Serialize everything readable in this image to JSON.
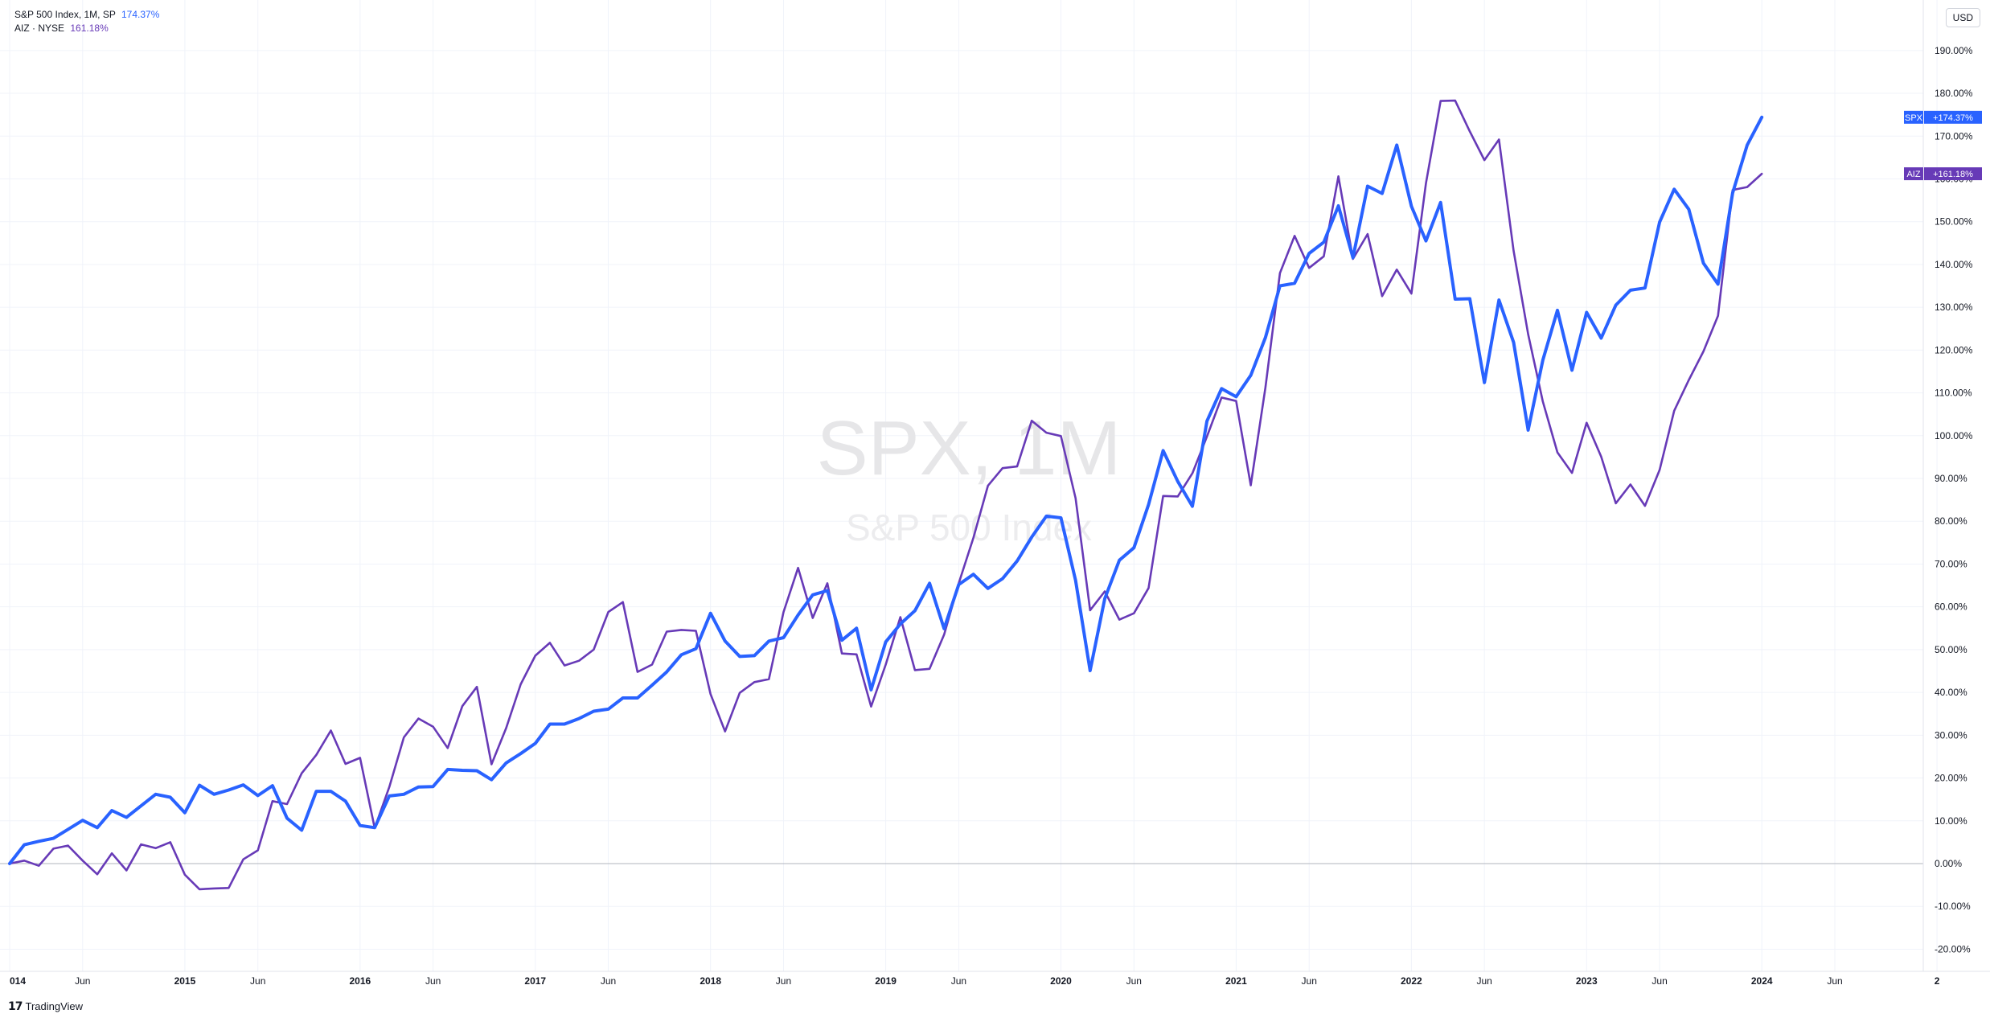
{
  "legend": {
    "series_1": {
      "label": "S&P 500 Index, 1M, SP",
      "value": "174.37%",
      "color": "#2962ff"
    },
    "series_2": {
      "label": "AIZ · NYSE",
      "value": "161.18%",
      "color": "#673ab7"
    }
  },
  "currency": "USD",
  "watermark": {
    "symbol": "SPX, 1M",
    "name": "S&P 500 Index"
  },
  "brand": "TradingView",
  "chart_data": {
    "type": "line",
    "xlabel": "",
    "ylabel": "",
    "yunit": "%",
    "ylim": [
      -24,
      196
    ],
    "grid": true,
    "legend_position": "top-left",
    "y_ticks": [
      "190.00%",
      "180.00%",
      "170.00%",
      "160.00%",
      "150.00%",
      "140.00%",
      "130.00%",
      "120.00%",
      "110.00%",
      "100.00%",
      "90.00%",
      "80.00%",
      "70.00%",
      "60.00%",
      "50.00%",
      "40.00%",
      "30.00%",
      "20.00%",
      "10.00%",
      "0.00%",
      "-10.00%",
      "-20.00%"
    ],
    "x_ticks": [
      {
        "m": 0,
        "label": "014"
      },
      {
        "m": 5,
        "label": "Jun"
      },
      {
        "m": 12,
        "label": "2015"
      },
      {
        "m": 17,
        "label": "Jun"
      },
      {
        "m": 24,
        "label": "2016"
      },
      {
        "m": 29,
        "label": "Jun"
      },
      {
        "m": 36,
        "label": "2017"
      },
      {
        "m": 41,
        "label": "Jun"
      },
      {
        "m": 48,
        "label": "2018"
      },
      {
        "m": 53,
        "label": "Jun"
      },
      {
        "m": 60,
        "label": "2019"
      },
      {
        "m": 65,
        "label": "Jun"
      },
      {
        "m": 72,
        "label": "2020"
      },
      {
        "m": 77,
        "label": "Jun"
      },
      {
        "m": 84,
        "label": "2021"
      },
      {
        "m": 89,
        "label": "Jun"
      },
      {
        "m": 96,
        "label": "2022"
      },
      {
        "m": 101,
        "label": "Jun"
      },
      {
        "m": 108,
        "label": "2023"
      },
      {
        "m": 113,
        "label": "Jun"
      },
      {
        "m": 120,
        "label": "2024"
      },
      {
        "m": 125,
        "label": "Jun"
      },
      {
        "m": 132,
        "label": "2"
      }
    ],
    "series": [
      {
        "name": "SPX",
        "color": "#2962ff",
        "badge": "+174.37%",
        "values": [
          0,
          4.4,
          5.2,
          5.9,
          8.0,
          10.1,
          8.4,
          12.4,
          10.8,
          13.5,
          16.2,
          15.5,
          11.9,
          18.3,
          16.2,
          17.2,
          18.4,
          15.9,
          18.2,
          10.6,
          7.8,
          16.9,
          16.9,
          14.6,
          8.9,
          8.4,
          15.8,
          16.2,
          17.9,
          18.0,
          22.0,
          21.8,
          21.7,
          19.6,
          23.5,
          25.7,
          28.1,
          32.6,
          32.6,
          33.9,
          35.6,
          36.1,
          38.7,
          38.7,
          41.7,
          44.8,
          48.8,
          50.2,
          58.5,
          52.0,
          48.4,
          48.6,
          52.0,
          52.8,
          58.1,
          62.8,
          63.8,
          52.2,
          55.0,
          40.6,
          51.8,
          56.0,
          59.1,
          65.5,
          54.9,
          65.2,
          67.6,
          64.3,
          66.6,
          70.7,
          76.3,
          81.2,
          80.8,
          66.2,
          45.1,
          61.9,
          70.9,
          73.8,
          83.9,
          96.5,
          89.3,
          83.5,
          103.4,
          111.0,
          109.1,
          114.1,
          122.9,
          135.0,
          135.6,
          142.6,
          145.2,
          153.7,
          141.6,
          158.3,
          156.6,
          167.9,
          153.6,
          145.5,
          154.5,
          131.9,
          132.0,
          112.4,
          131.7,
          121.8,
          101.3,
          117.6,
          129.3,
          115.3,
          128.8,
          122.8,
          130.5,
          134.0,
          134.5,
          149.9,
          157.6,
          152.9,
          140.3,
          135.4,
          156.7,
          167.9,
          174.4
        ]
      },
      {
        "name": "AIZ",
        "color": "#673ab7",
        "badge": "+161.18%",
        "values": [
          0,
          0.7,
          -0.5,
          3.5,
          4.2,
          0.7,
          -2.5,
          2.4,
          -1.6,
          4.5,
          3.6,
          5.0,
          -2.6,
          -6.0,
          -5.8,
          -5.7,
          1.0,
          3.1,
          14.6,
          13.9,
          21.1,
          25.4,
          31.1,
          23.3,
          24.7,
          8.3,
          17.9,
          29.5,
          33.9,
          32.0,
          27.0,
          36.8,
          41.3,
          23.2,
          31.6,
          41.9,
          48.6,
          51.6,
          46.3,
          47.4,
          50.0,
          58.8,
          61.1,
          44.8,
          46.5,
          54.2,
          54.6,
          54.4,
          39.6,
          30.9,
          39.9,
          42.4,
          43.1,
          58.8,
          69.1,
          57.4,
          65.5,
          49.1,
          48.9,
          36.7,
          46.5,
          57.6,
          45.2,
          45.5,
          53.5,
          65.5,
          76.1,
          88.3,
          92.4,
          92.8,
          103.5,
          100.7,
          99.9,
          85.4,
          59.2,
          63.6,
          57.0,
          58.5,
          64.4,
          85.9,
          85.8,
          91.2,
          99.8,
          108.9,
          108.1,
          88.4,
          111.2,
          138.0,
          146.7,
          139.2,
          141.9,
          160.6,
          141.3,
          147.1,
          132.6,
          138.8,
          133.2,
          159.0,
          178.2,
          178.3,
          171.1,
          164.4,
          169.2,
          143.2,
          123.7,
          108.0,
          96.1,
          91.3,
          103.0,
          95.1,
          84.2,
          88.6,
          83.6,
          92.0,
          105.8,
          113.0,
          119.7,
          128.0,
          157.4,
          158.1,
          161.2
        ]
      }
    ]
  }
}
